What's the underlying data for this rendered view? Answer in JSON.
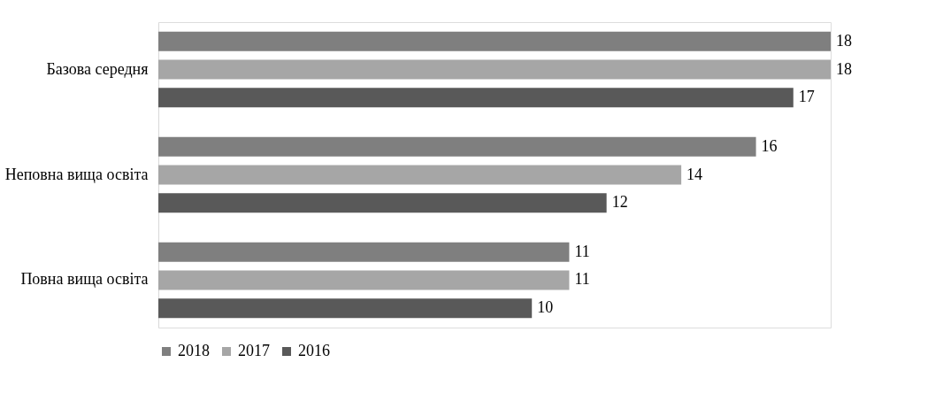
{
  "chart_data": {
    "type": "bar",
    "orientation": "horizontal",
    "categories": [
      "Базова середня",
      "Неповна вища освіта",
      "Повна вища освіта"
    ],
    "series": [
      {
        "name": "2018",
        "color": "#7f7f7f",
        "values": [
          18,
          16,
          11
        ]
      },
      {
        "name": "2017",
        "color": "#a6a6a6",
        "values": [
          18,
          14,
          11
        ]
      },
      {
        "name": "2016",
        "color": "#595959",
        "values": [
          17,
          12,
          10
        ]
      }
    ],
    "xlim": [
      0,
      18
    ],
    "data_labels": true,
    "tick_labels": "y",
    "grid": false,
    "legend": "bottom"
  }
}
